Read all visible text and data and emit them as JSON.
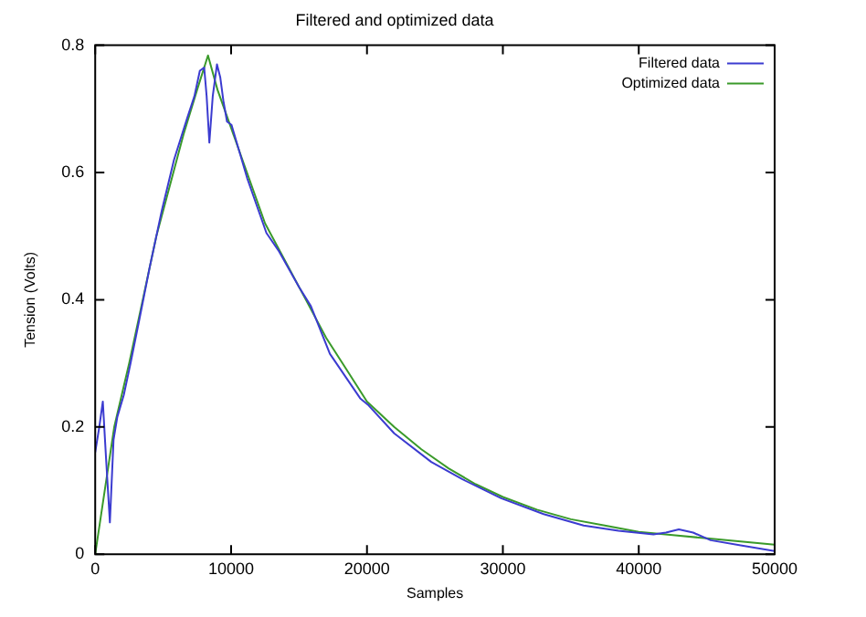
{
  "chart_data": {
    "type": "line",
    "title": "Filtered and optimized data",
    "xlabel": "Samples",
    "ylabel": "Tension (Volts)",
    "xlim": [
      0,
      50000
    ],
    "xticks": [
      0,
      10000,
      20000,
      30000,
      40000,
      50000
    ],
    "ylim": [
      0,
      0.8
    ],
    "yticks": [
      0,
      0.2,
      0.4,
      0.6,
      0.8
    ],
    "grid": false,
    "legend": "top right",
    "marker": "none",
    "line_style": "solid",
    "series": [
      {
        "name": "Filtered data",
        "color": "#3b3bd0",
        "x": [
          0,
          300,
          560,
          800,
          1080,
          1350,
          1630,
          2100,
          2600,
          3260,
          4000,
          4900,
          5800,
          6760,
          7300,
          7700,
          8020,
          8200,
          8400,
          8650,
          8960,
          9200,
          9430,
          9700,
          10030,
          11200,
          12600,
          13530,
          15000,
          15870,
          17270,
          19500,
          20070,
          22000,
          24730,
          27000,
          29870,
          33000,
          35940,
          38500,
          41080,
          42000,
          42950,
          44000,
          45290,
          47500,
          50000
        ],
        "values": [
          0.16,
          0.2,
          0.24,
          0.15,
          0.05,
          0.18,
          0.216,
          0.25,
          0.3,
          0.37,
          0.45,
          0.54,
          0.62,
          0.685,
          0.72,
          0.76,
          0.765,
          0.72,
          0.647,
          0.72,
          0.77,
          0.75,
          0.713,
          0.68,
          0.675,
          0.59,
          0.505,
          0.476,
          0.42,
          0.39,
          0.315,
          0.245,
          0.235,
          0.19,
          0.145,
          0.118,
          0.088,
          0.063,
          0.045,
          0.037,
          0.031,
          0.034,
          0.039,
          0.034,
          0.022,
          0.014,
          0.005
        ]
      },
      {
        "name": "Optimized data",
        "color": "#3a9a2a",
        "x": [
          0,
          1400,
          2500,
          3500,
          4500,
          5500,
          6500,
          7500,
          8300,
          9000,
          10000,
          11000,
          12500,
          14000,
          15500,
          17000,
          18500,
          20000,
          22000,
          24000,
          26000,
          28000,
          30000,
          32500,
          35000,
          37500,
          40000,
          42500,
          45000,
          47500,
          50000
        ],
        "values": [
          0,
          0.2,
          0.3,
          0.4,
          0.5,
          0.58,
          0.66,
          0.73,
          0.784,
          0.73,
          0.67,
          0.61,
          0.52,
          0.46,
          0.4,
          0.34,
          0.29,
          0.24,
          0.2,
          0.165,
          0.135,
          0.11,
          0.09,
          0.07,
          0.055,
          0.045,
          0.035,
          0.03,
          0.025,
          0.02,
          0.015
        ]
      }
    ]
  }
}
